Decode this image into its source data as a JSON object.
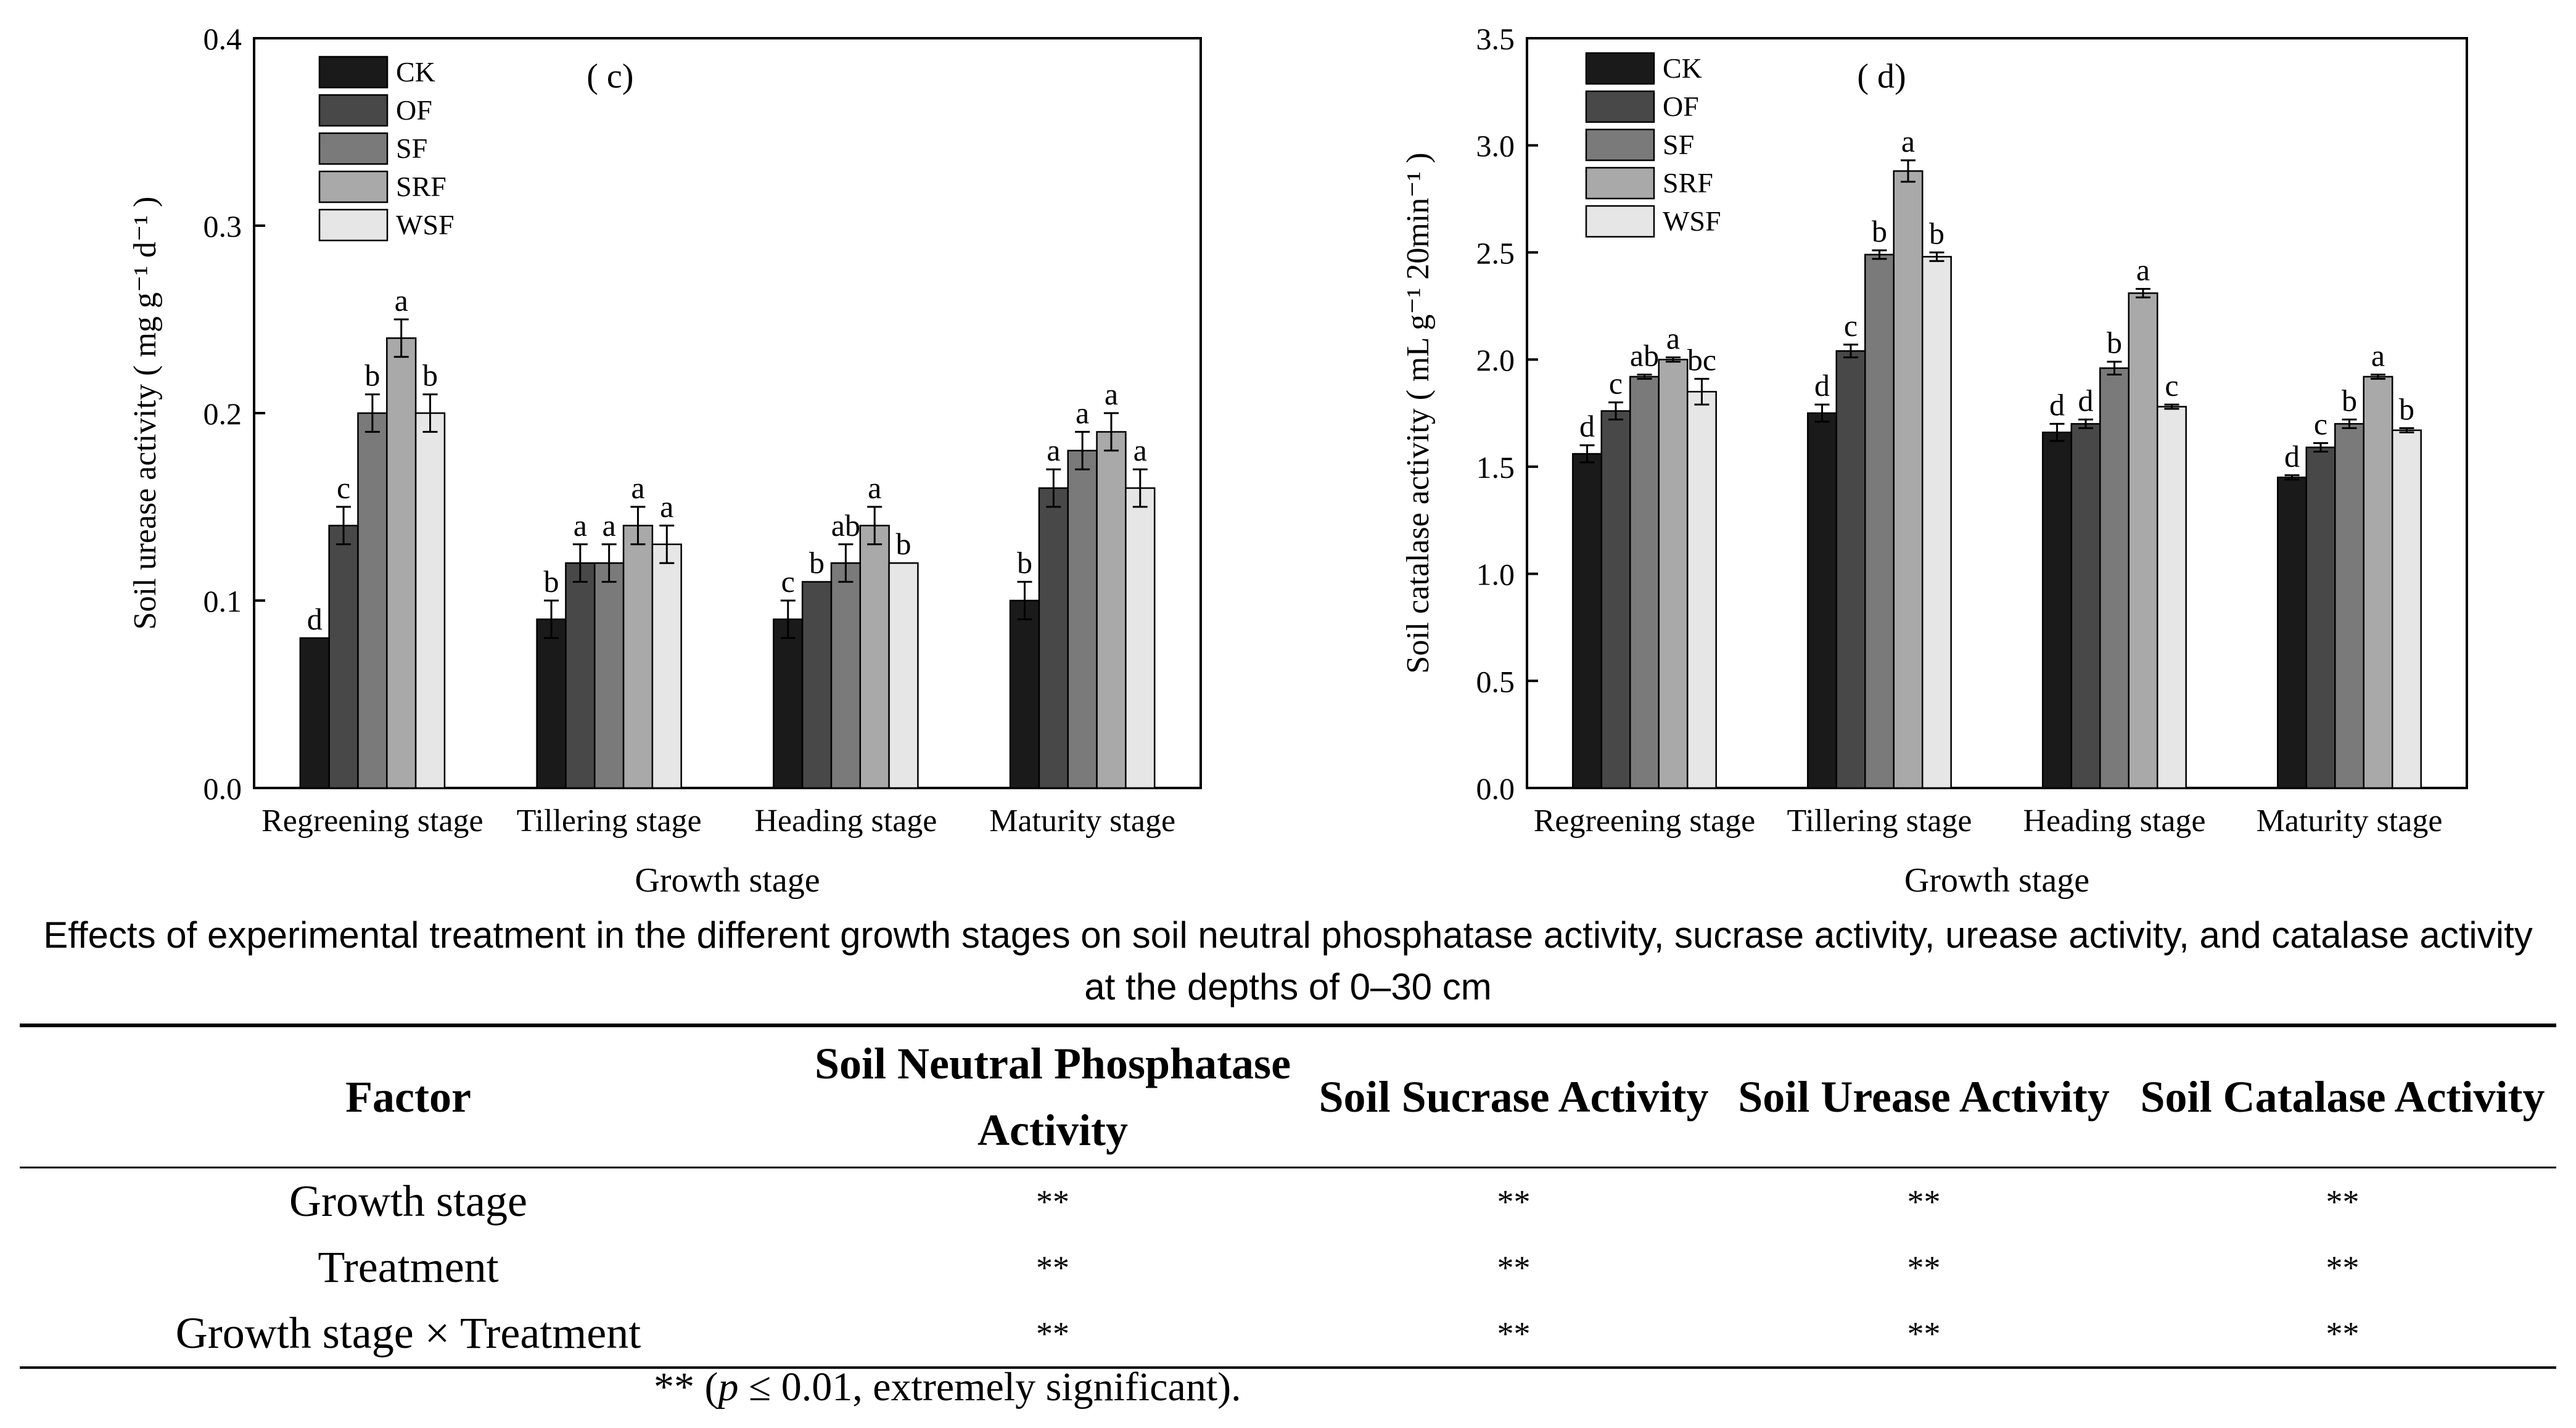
{
  "chart_data": [
    {
      "type": "bar",
      "panel_label": "( c)",
      "categories": [
        "Regreening stage",
        "Tillering stage",
        "Heading stage",
        "Maturity stage"
      ],
      "xlabel": "Growth stage",
      "ylabel": "Soil urease activity ( mg g⁻¹ d⁻¹ )",
      "ylim": [
        0,
        0.4
      ],
      "yticks": [
        "0.0",
        "0.1",
        "0.2",
        "0.3",
        "0.4"
      ],
      "legend_position": "top-left",
      "series": [
        {
          "name": "CK",
          "color": "#1a1a1a",
          "values": [
            0.08,
            0.09,
            0.09,
            0.1
          ],
          "errors": [
            0,
            0.01,
            0.01,
            0.01
          ],
          "letters": [
            "d",
            "b",
            "c",
            "b"
          ]
        },
        {
          "name": "OF",
          "color": "#484848",
          "values": [
            0.14,
            0.12,
            0.11,
            0.16
          ],
          "errors": [
            0.01,
            0.01,
            0,
            0.01
          ],
          "letters": [
            "c",
            "a",
            "b",
            "a"
          ]
        },
        {
          "name": "SF",
          "color": "#7a7a7a",
          "values": [
            0.2,
            0.12,
            0.12,
            0.18
          ],
          "errors": [
            0.01,
            0.01,
            0.01,
            0.01
          ],
          "letters": [
            "b",
            "a",
            "ab",
            "a"
          ]
        },
        {
          "name": "SRF",
          "color": "#a9a9a9",
          "values": [
            0.24,
            0.14,
            0.14,
            0.19
          ],
          "errors": [
            0.01,
            0.01,
            0.01,
            0.01
          ],
          "letters": [
            "a",
            "a",
            "a",
            "a"
          ]
        },
        {
          "name": "WSF",
          "color": "#e6e6e6",
          "values": [
            0.2,
            0.13,
            0.12,
            0.16
          ],
          "errors": [
            0.01,
            0.01,
            0,
            0.01
          ],
          "letters": [
            "b",
            "a",
            "b",
            "a"
          ]
        }
      ]
    },
    {
      "type": "bar",
      "panel_label": "( d)",
      "categories": [
        "Regreening stage",
        "Tillering stage",
        "Heading stage",
        "Maturity stage"
      ],
      "xlabel": "Growth stage",
      "ylabel": "Soil catalase activity ( mL g⁻¹ 20min⁻¹ )",
      "ylim": [
        0,
        3.5
      ],
      "yticks": [
        "0.0",
        "0.5",
        "1.0",
        "1.5",
        "2.0",
        "2.5",
        "3.0",
        "3.5"
      ],
      "legend_position": "top-left",
      "series": [
        {
          "name": "CK",
          "color": "#1a1a1a",
          "values": [
            1.56,
            1.75,
            1.66,
            1.45
          ],
          "errors": [
            0.04,
            0.04,
            0.04,
            0.01
          ],
          "letters": [
            "d",
            "d",
            "d",
            "d"
          ]
        },
        {
          "name": "OF",
          "color": "#484848",
          "values": [
            1.76,
            2.04,
            1.7,
            1.59
          ],
          "errors": [
            0.04,
            0.03,
            0.02,
            0.02
          ],
          "letters": [
            "c",
            "c",
            "d",
            "c"
          ]
        },
        {
          "name": "SF",
          "color": "#7a7a7a",
          "values": [
            1.92,
            2.49,
            1.96,
            1.7
          ],
          "errors": [
            0.01,
            0.02,
            0.03,
            0.02
          ],
          "letters": [
            "ab",
            "b",
            "b",
            "b"
          ]
        },
        {
          "name": "SRF",
          "color": "#a9a9a9",
          "values": [
            2.0,
            2.88,
            2.31,
            1.92
          ],
          "errors": [
            0.01,
            0.05,
            0.02,
            0.01
          ],
          "letters": [
            "a",
            "a",
            "a",
            "a"
          ]
        },
        {
          "name": "WSF",
          "color": "#e6e6e6",
          "values": [
            1.85,
            2.48,
            1.78,
            1.67
          ],
          "errors": [
            0.06,
            0.02,
            0.01,
            0.01
          ],
          "letters": [
            "bc",
            "b",
            "c",
            "b"
          ]
        }
      ]
    }
  ],
  "caption": "Effects of experimental treatment in the different growth stages on soil neutral phosphatase activity, sucrase activity, urease activity, and catalase activity at the depths of 0–30 cm",
  "table": {
    "headers": [
      "Factor",
      "Soil Neutral Phosphatase Activity",
      "Soil Sucrase Activity",
      "Soil Urease Activity",
      "Soil Catalase Activity"
    ],
    "rows": [
      [
        "Growth stage",
        "**",
        "**",
        "**",
        "**"
      ],
      [
        "Treatment",
        "**",
        "**",
        "**",
        "**"
      ],
      [
        "Growth stage × Treatment",
        "**",
        "**",
        "**",
        "**"
      ]
    ],
    "note_prefix": "** (",
    "note_p": "p",
    "note_suffix": " ≤ 0.01, extremely significant)."
  }
}
